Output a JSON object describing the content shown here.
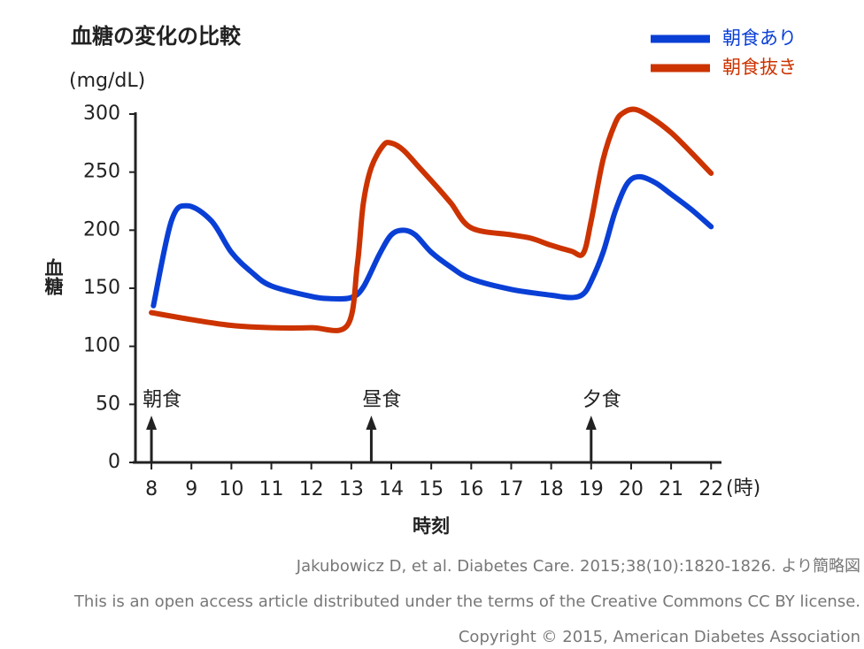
{
  "chart_data": {
    "type": "line",
    "title": "血糖の変化の比較",
    "y_unit": "(mg/dL)",
    "y_label": "血糖",
    "x_label": "時刻",
    "x_unit": "(時)",
    "xlim": [
      7.6,
      22.26
    ],
    "xticks": [
      8,
      9,
      10,
      11,
      12,
      13,
      14,
      15,
      16,
      17,
      18,
      19,
      20,
      21,
      22
    ],
    "ylim": [
      0,
      300
    ],
    "yticks": [
      0,
      50,
      100,
      150,
      200,
      250,
      300
    ],
    "legend": "top-right",
    "series": [
      {
        "name": "朝食あり",
        "color": "#0a3fd6",
        "x": [
          8.05,
          8.5,
          8.9,
          9.5,
          10,
          10.5,
          11,
          12,
          12.5,
          13,
          13.3,
          13.7,
          14,
          14.3,
          14.6,
          15,
          15.5,
          16,
          17,
          18,
          18.5,
          18.8,
          19,
          19.3,
          19.6,
          19.9,
          20.2,
          20.6,
          21,
          21.5,
          22
        ],
        "values": [
          135,
          208,
          221,
          208,
          181,
          164,
          152,
          143,
          141,
          142,
          151,
          179,
          196,
          200,
          196,
          181,
          168,
          158,
          149,
          144,
          142,
          145,
          156,
          181,
          216,
          240,
          246,
          241,
          231,
          218,
          203
        ]
      },
      {
        "name": "朝食抜き",
        "color": "#cc3300",
        "x": [
          8,
          9,
          10,
          11,
          12,
          12.9,
          13.15,
          13.3,
          13.5,
          13.8,
          14,
          14.3,
          14.7,
          15.2,
          15.5,
          16,
          17,
          17.5,
          18,
          18.5,
          18.8,
          19,
          19.3,
          19.6,
          19.8,
          20.1,
          20.5,
          21,
          21.5,
          22
        ],
        "values": [
          129,
          123,
          118,
          116,
          116,
          118,
          170,
          223,
          254,
          273,
          275,
          269,
          254,
          235,
          223,
          202,
          196,
          193,
          187,
          182,
          180,
          208,
          261,
          292,
          301,
          304,
          297,
          284,
          267,
          249
        ]
      }
    ],
    "annotations": [
      {
        "text": "朝食",
        "x": 8
      },
      {
        "text": "昼食",
        "x": 13.5
      },
      {
        "text": "夕食",
        "x": 19
      }
    ],
    "footnotes": [
      "Jakubowicz D, et al. Diabetes Care. 2015;38(10):1820-1826. より簡略図",
      "This is an open access article distributed under the terms of the Creative Commons CC BY license.",
      "Copyright © 2015, American Diabetes Association"
    ]
  }
}
